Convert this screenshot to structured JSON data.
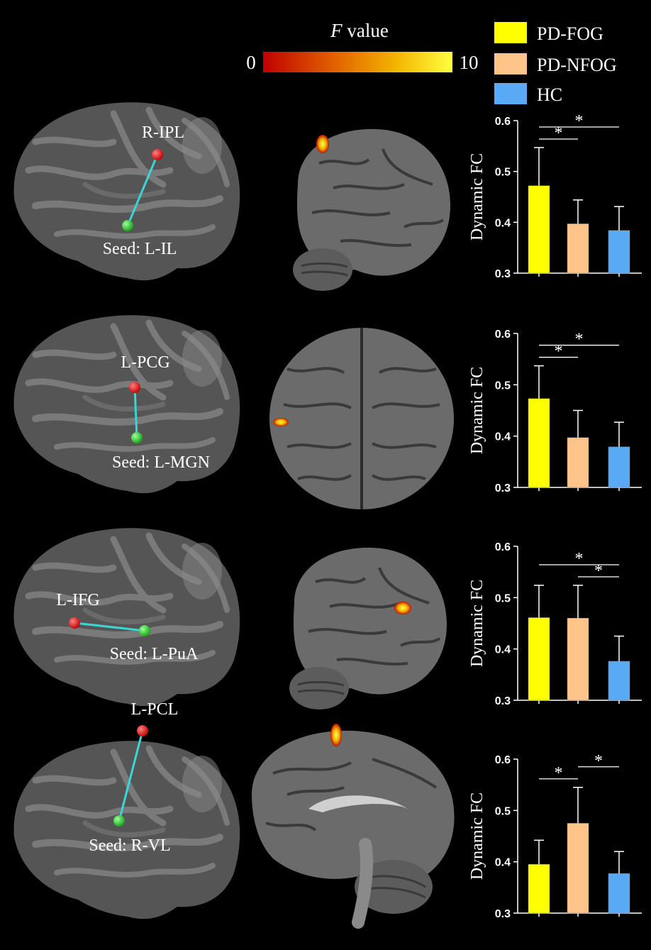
{
  "colorbar": {
    "title_italic": "F",
    "title_rest": " value",
    "min_label": "0",
    "max_label": "10",
    "colors": [
      "#c00000",
      "#e05a00",
      "#f3b400",
      "#ffff40"
    ]
  },
  "legend": [
    {
      "name": "PD-FOG",
      "color": "#ffff00"
    },
    {
      "name": "PD-NFOG",
      "color": "#ffc48a"
    },
    {
      "name": "HC",
      "color": "#5aa9f5"
    }
  ],
  "rows": [
    {
      "target_label": "R-IPL",
      "seed_label": "Seed: L-IL"
    },
    {
      "target_label": "L-PCG",
      "seed_label": "Seed: L-MGN"
    },
    {
      "target_label": "L-IFG",
      "seed_label": "Seed: L-PuA"
    },
    {
      "target_label": "L-PCL",
      "seed_label": "Seed: R-VL"
    }
  ],
  "chart_data": [
    {
      "type": "bar",
      "categories": [
        "PD-FOG",
        "PD-NFOG",
        "HC"
      ],
      "values": [
        0.472,
        0.397,
        0.384
      ],
      "errors": [
        0.075,
        0.047,
        0.047
      ],
      "ylabel": "Dynamic FC",
      "ylim": [
        0.3,
        0.6
      ],
      "yticks": [
        "0.3",
        "0.4",
        "0.5",
        "0.6"
      ],
      "significance": [
        {
          "from": 0,
          "to": 1,
          "label": "*"
        },
        {
          "from": 0,
          "to": 2,
          "label": "*"
        }
      ]
    },
    {
      "type": "bar",
      "categories": [
        "PD-FOG",
        "PD-NFOG",
        "HC"
      ],
      "values": [
        0.473,
        0.397,
        0.379
      ],
      "errors": [
        0.064,
        0.053,
        0.048
      ],
      "ylabel": "Dynamic FC",
      "ylim": [
        0.3,
        0.6
      ],
      "yticks": [
        "0.3",
        "0.4",
        "0.5",
        "0.6"
      ],
      "significance": [
        {
          "from": 0,
          "to": 1,
          "label": "*"
        },
        {
          "from": 0,
          "to": 2,
          "label": "*"
        }
      ]
    },
    {
      "type": "bar",
      "categories": [
        "PD-FOG",
        "PD-NFOG",
        "HC"
      ],
      "values": [
        0.461,
        0.46,
        0.376
      ],
      "errors": [
        0.063,
        0.064,
        0.049
      ],
      "ylabel": "Dynamic FC",
      "ylim": [
        0.3,
        0.6
      ],
      "yticks": [
        "0.3",
        "0.4",
        "0.5",
        "0.6"
      ],
      "significance": [
        {
          "from": 1,
          "to": 2,
          "label": "*"
        },
        {
          "from": 0,
          "to": 2,
          "label": "*"
        }
      ]
    },
    {
      "type": "bar",
      "categories": [
        "PD-FOG",
        "PD-NFOG",
        "HC"
      ],
      "values": [
        0.395,
        0.475,
        0.377
      ],
      "errors": [
        0.047,
        0.07,
        0.043
      ],
      "ylabel": "Dynamic FC",
      "ylim": [
        0.3,
        0.6
      ],
      "yticks": [
        "0.3",
        "0.4",
        "0.5",
        "0.6"
      ],
      "significance": [
        {
          "from": 0,
          "to": 1,
          "label": "*"
        },
        {
          "from": 1,
          "to": 2,
          "label": "*"
        }
      ]
    }
  ]
}
